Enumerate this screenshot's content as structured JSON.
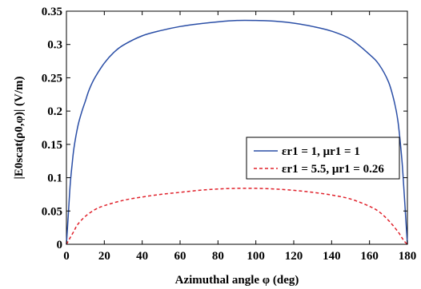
{
  "chart_data": {
    "type": "line",
    "xlabel": "Azimuthal angle φ (deg)",
    "ylabel": "|E0scat(ρ0,φ)| (V/m)",
    "xlim": [
      0,
      180
    ],
    "ylim": [
      0,
      0.35
    ],
    "xticks": [
      "0",
      "20",
      "40",
      "60",
      "80",
      "100",
      "120",
      "140",
      "160",
      "180"
    ],
    "yticks": [
      "0",
      "0.05",
      "0.1",
      "0.15",
      "0.2",
      "0.25",
      "0.3",
      "0.35"
    ],
    "grid": false,
    "legend_position": "right",
    "series": [
      {
        "name": "εr1 = 1, μr1 = 1",
        "color": "#2a4ea6",
        "line_style": "solid",
        "x": [
          0,
          1,
          2,
          3,
          4,
          6,
          8,
          10,
          12,
          15,
          20,
          25,
          30,
          40,
          50,
          60,
          70,
          80,
          90,
          100,
          110,
          120,
          130,
          140,
          150,
          160,
          165,
          170,
          173,
          175,
          177,
          178,
          179,
          180
        ],
        "y": [
          0.0,
          0.045,
          0.09,
          0.12,
          0.145,
          0.177,
          0.198,
          0.215,
          0.232,
          0.25,
          0.272,
          0.288,
          0.299,
          0.313,
          0.321,
          0.327,
          0.331,
          0.334,
          0.336,
          0.336,
          0.335,
          0.332,
          0.327,
          0.32,
          0.308,
          0.285,
          0.27,
          0.244,
          0.215,
          0.185,
          0.13,
          0.09,
          0.045,
          0.0
        ]
      },
      {
        "name": "εr1 = 5.5, μr1 = 0.26",
        "color": "#e0202a",
        "line_style": "dashed",
        "x": [
          0,
          2,
          4,
          6,
          10,
          15,
          20,
          30,
          40,
          50,
          60,
          70,
          80,
          90,
          100,
          110,
          120,
          130,
          140,
          150,
          160,
          165,
          170,
          175,
          178,
          180
        ],
        "y": [
          0.0,
          0.01,
          0.02,
          0.03,
          0.042,
          0.052,
          0.058,
          0.066,
          0.071,
          0.075,
          0.078,
          0.081,
          0.083,
          0.084,
          0.084,
          0.083,
          0.081,
          0.078,
          0.074,
          0.068,
          0.057,
          0.049,
          0.036,
          0.019,
          0.006,
          0.0
        ]
      }
    ]
  }
}
